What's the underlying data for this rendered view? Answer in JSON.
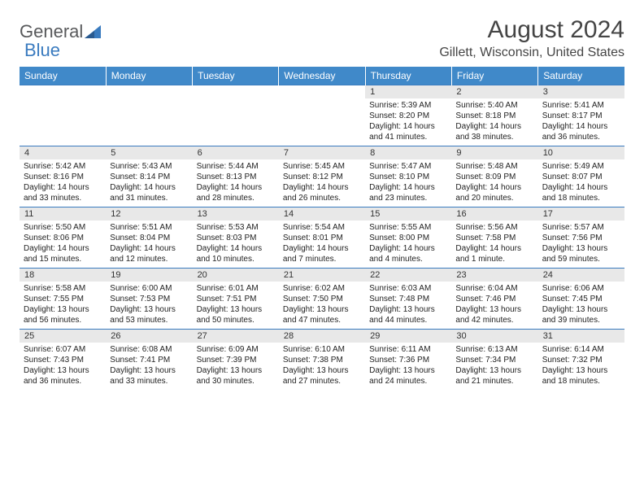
{
  "brand": {
    "name1": "General",
    "name2": "Blue"
  },
  "title": "August 2024",
  "location": "Gillett, Wisconsin, United States",
  "colors": {
    "header_bg": "#4089c9",
    "header_text": "#ffffff",
    "daynum_bg": "#e8e8e8",
    "border": "#3a7bbf",
    "title_color": "#454545",
    "logo_gray": "#58595b",
    "logo_blue": "#3a7bbf"
  },
  "day_headers": [
    "Sunday",
    "Monday",
    "Tuesday",
    "Wednesday",
    "Thursday",
    "Friday",
    "Saturday"
  ],
  "weeks": [
    [
      null,
      null,
      null,
      null,
      {
        "n": "1",
        "sr": "5:39 AM",
        "ss": "8:20 PM",
        "dl": "14 hours and 41 minutes."
      },
      {
        "n": "2",
        "sr": "5:40 AM",
        "ss": "8:18 PM",
        "dl": "14 hours and 38 minutes."
      },
      {
        "n": "3",
        "sr": "5:41 AM",
        "ss": "8:17 PM",
        "dl": "14 hours and 36 minutes."
      }
    ],
    [
      {
        "n": "4",
        "sr": "5:42 AM",
        "ss": "8:16 PM",
        "dl": "14 hours and 33 minutes."
      },
      {
        "n": "5",
        "sr": "5:43 AM",
        "ss": "8:14 PM",
        "dl": "14 hours and 31 minutes."
      },
      {
        "n": "6",
        "sr": "5:44 AM",
        "ss": "8:13 PM",
        "dl": "14 hours and 28 minutes."
      },
      {
        "n": "7",
        "sr": "5:45 AM",
        "ss": "8:12 PM",
        "dl": "14 hours and 26 minutes."
      },
      {
        "n": "8",
        "sr": "5:47 AM",
        "ss": "8:10 PM",
        "dl": "14 hours and 23 minutes."
      },
      {
        "n": "9",
        "sr": "5:48 AM",
        "ss": "8:09 PM",
        "dl": "14 hours and 20 minutes."
      },
      {
        "n": "10",
        "sr": "5:49 AM",
        "ss": "8:07 PM",
        "dl": "14 hours and 18 minutes."
      }
    ],
    [
      {
        "n": "11",
        "sr": "5:50 AM",
        "ss": "8:06 PM",
        "dl": "14 hours and 15 minutes."
      },
      {
        "n": "12",
        "sr": "5:51 AM",
        "ss": "8:04 PM",
        "dl": "14 hours and 12 minutes."
      },
      {
        "n": "13",
        "sr": "5:53 AM",
        "ss": "8:03 PM",
        "dl": "14 hours and 10 minutes."
      },
      {
        "n": "14",
        "sr": "5:54 AM",
        "ss": "8:01 PM",
        "dl": "14 hours and 7 minutes."
      },
      {
        "n": "15",
        "sr": "5:55 AM",
        "ss": "8:00 PM",
        "dl": "14 hours and 4 minutes."
      },
      {
        "n": "16",
        "sr": "5:56 AM",
        "ss": "7:58 PM",
        "dl": "14 hours and 1 minute."
      },
      {
        "n": "17",
        "sr": "5:57 AM",
        "ss": "7:56 PM",
        "dl": "13 hours and 59 minutes."
      }
    ],
    [
      {
        "n": "18",
        "sr": "5:58 AM",
        "ss": "7:55 PM",
        "dl": "13 hours and 56 minutes."
      },
      {
        "n": "19",
        "sr": "6:00 AM",
        "ss": "7:53 PM",
        "dl": "13 hours and 53 minutes."
      },
      {
        "n": "20",
        "sr": "6:01 AM",
        "ss": "7:51 PM",
        "dl": "13 hours and 50 minutes."
      },
      {
        "n": "21",
        "sr": "6:02 AM",
        "ss": "7:50 PM",
        "dl": "13 hours and 47 minutes."
      },
      {
        "n": "22",
        "sr": "6:03 AM",
        "ss": "7:48 PM",
        "dl": "13 hours and 44 minutes."
      },
      {
        "n": "23",
        "sr": "6:04 AM",
        "ss": "7:46 PM",
        "dl": "13 hours and 42 minutes."
      },
      {
        "n": "24",
        "sr": "6:06 AM",
        "ss": "7:45 PM",
        "dl": "13 hours and 39 minutes."
      }
    ],
    [
      {
        "n": "25",
        "sr": "6:07 AM",
        "ss": "7:43 PM",
        "dl": "13 hours and 36 minutes."
      },
      {
        "n": "26",
        "sr": "6:08 AM",
        "ss": "7:41 PM",
        "dl": "13 hours and 33 minutes."
      },
      {
        "n": "27",
        "sr": "6:09 AM",
        "ss": "7:39 PM",
        "dl": "13 hours and 30 minutes."
      },
      {
        "n": "28",
        "sr": "6:10 AM",
        "ss": "7:38 PM",
        "dl": "13 hours and 27 minutes."
      },
      {
        "n": "29",
        "sr": "6:11 AM",
        "ss": "7:36 PM",
        "dl": "13 hours and 24 minutes."
      },
      {
        "n": "30",
        "sr": "6:13 AM",
        "ss": "7:34 PM",
        "dl": "13 hours and 21 minutes."
      },
      {
        "n": "31",
        "sr": "6:14 AM",
        "ss": "7:32 PM",
        "dl": "13 hours and 18 minutes."
      }
    ]
  ],
  "labels": {
    "sunrise": "Sunrise:",
    "sunset": "Sunset:",
    "daylight": "Daylight:"
  }
}
